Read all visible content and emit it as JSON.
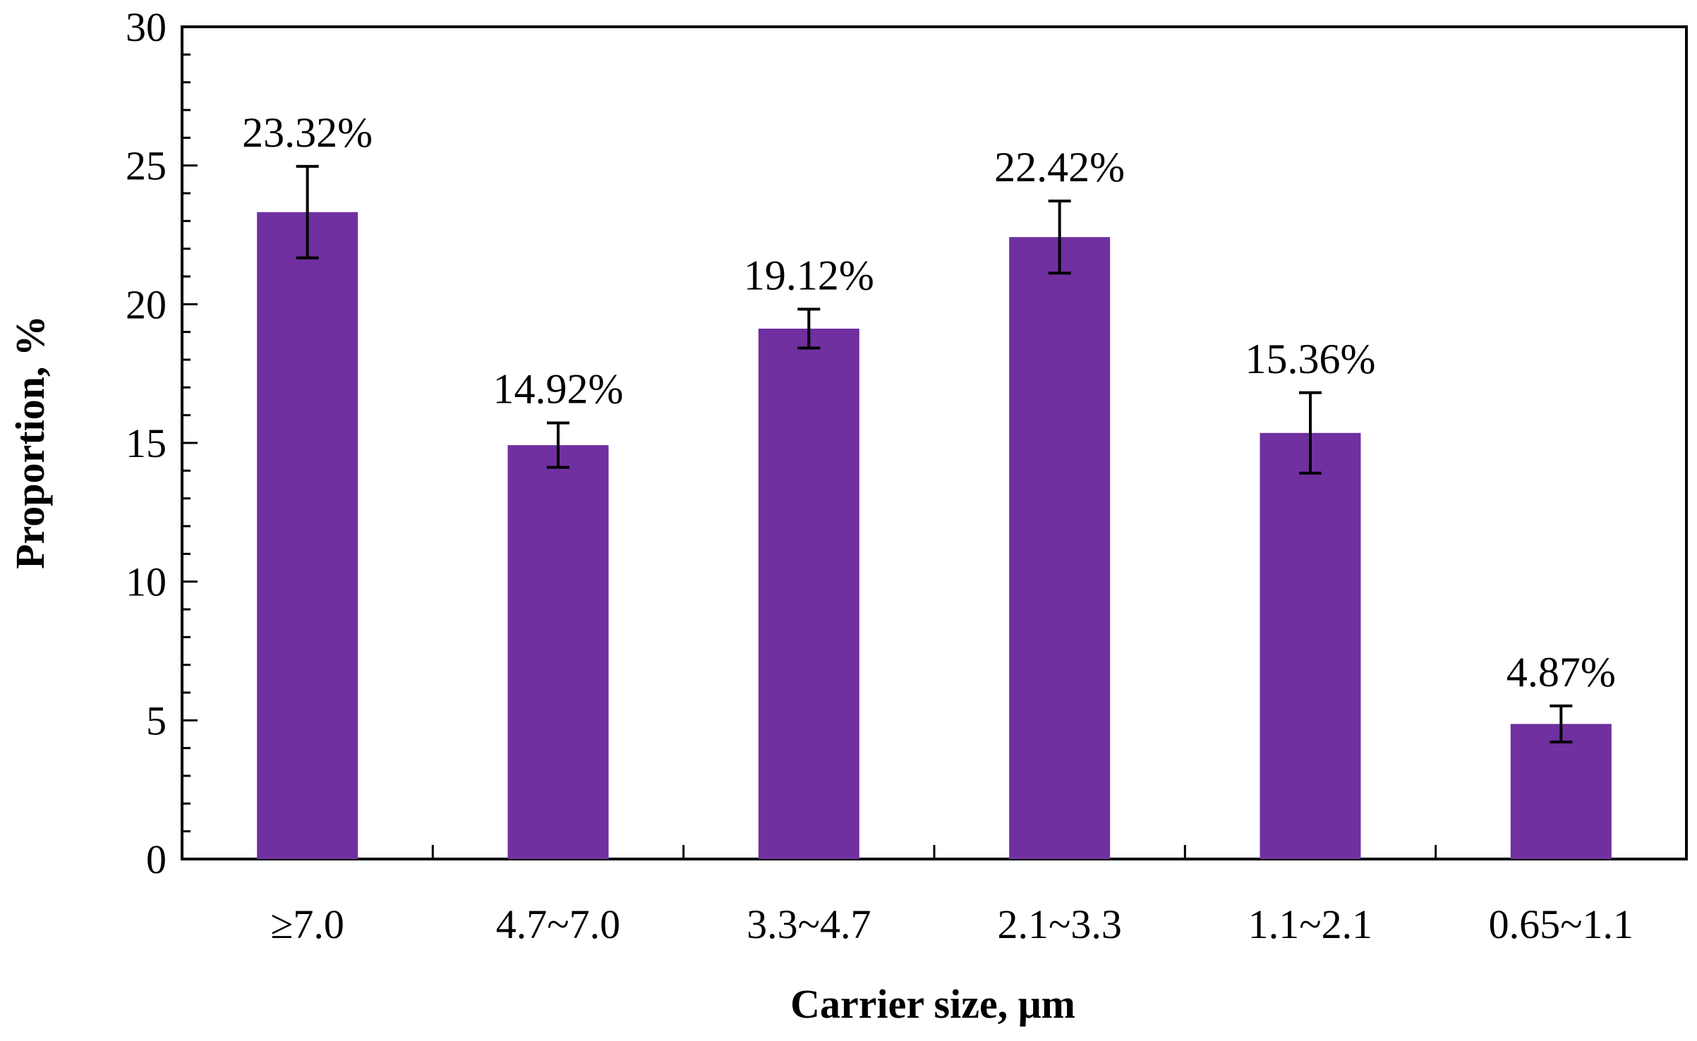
{
  "chart_data": {
    "type": "bar",
    "title": "",
    "xlabel": "Carrier size, μm",
    "ylabel": "Proportion, %",
    "categories": [
      "≥7.0",
      "4.7~7.0",
      "3.3~4.7",
      "2.1~3.3",
      "1.1~2.1",
      "0.65~1.1"
    ],
    "values": [
      23.32,
      14.92,
      19.12,
      22.42,
      15.36,
      4.87
    ],
    "value_labels": [
      "23.32%",
      "14.92%",
      "19.12%",
      "22.42%",
      "15.36%",
      "4.87%"
    ],
    "error_bars": [
      1.65,
      0.8,
      0.7,
      1.3,
      1.45,
      0.65
    ],
    "ylim": [
      0,
      30
    ],
    "yticks": [
      0,
      5,
      10,
      15,
      20,
      25,
      30
    ],
    "ytick_labels": [
      "0",
      "5",
      "10",
      "15",
      "20",
      "25",
      "30"
    ],
    "minor_tick_step": 1,
    "grid": false,
    "legend": "none",
    "bar_color": "#7030A0",
    "axis_color": "#000000"
  }
}
